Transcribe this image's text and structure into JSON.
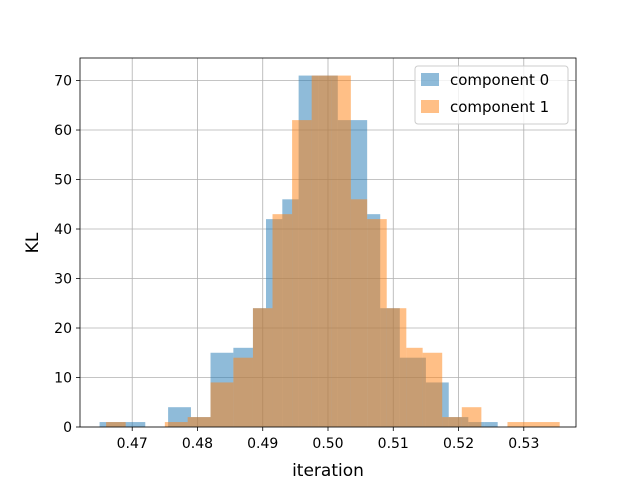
{
  "chart_data": {
    "type": "bar",
    "title": "",
    "xlabel": "iteration",
    "ylabel": "KL",
    "xlim": [
      0.462,
      0.538
    ],
    "ylim": [
      0,
      74.55
    ],
    "xticks": [
      0.47,
      0.48,
      0.49,
      0.5,
      0.51,
      0.52,
      0.53
    ],
    "xtick_labels": [
      "0.47",
      "0.48",
      "0.49",
      "0.50",
      "0.51",
      "0.52",
      "0.53"
    ],
    "yticks": [
      0,
      10,
      20,
      30,
      40,
      50,
      60,
      70
    ],
    "ytick_labels": [
      "0",
      "10",
      "20",
      "30",
      "40",
      "50",
      "60",
      "70"
    ],
    "grid": true,
    "legend_position": "top-right",
    "series": [
      {
        "name": "component 0",
        "color": "#1f77b4",
        "alpha": 0.5,
        "bins": [
          {
            "x0": 0.465,
            "x1": 0.4685,
            "count": 1
          },
          {
            "x0": 0.4685,
            "x1": 0.472,
            "count": 1
          },
          {
            "x0": 0.472,
            "x1": 0.4755,
            "count": 0
          },
          {
            "x0": 0.4755,
            "x1": 0.479,
            "count": 4
          },
          {
            "x0": 0.479,
            "x1": 0.482,
            "count": 2
          },
          {
            "x0": 0.482,
            "x1": 0.4855,
            "count": 15
          },
          {
            "x0": 0.4855,
            "x1": 0.4885,
            "count": 16
          },
          {
            "x0": 0.4885,
            "x1": 0.4905,
            "count": 24
          },
          {
            "x0": 0.4905,
            "x1": 0.493,
            "count": 42
          },
          {
            "x0": 0.493,
            "x1": 0.4955,
            "count": 46
          },
          {
            "x0": 0.4955,
            "x1": 0.4985,
            "count": 71
          },
          {
            "x0": 0.4985,
            "x1": 0.5015,
            "count": 71
          },
          {
            "x0": 0.5015,
            "x1": 0.506,
            "count": 62
          },
          {
            "x0": 0.506,
            "x1": 0.508,
            "count": 43
          },
          {
            "x0": 0.508,
            "x1": 0.511,
            "count": 24
          },
          {
            "x0": 0.511,
            "x1": 0.515,
            "count": 14
          },
          {
            "x0": 0.515,
            "x1": 0.5185,
            "count": 9
          },
          {
            "x0": 0.5185,
            "x1": 0.5215,
            "count": 2
          },
          {
            "x0": 0.5215,
            "x1": 0.524,
            "count": 1
          },
          {
            "x0": 0.524,
            "x1": 0.526,
            "count": 1
          }
        ]
      },
      {
        "name": "component 1",
        "color": "#ff7f0e",
        "alpha": 0.5,
        "bins": [
          {
            "x0": 0.466,
            "x1": 0.469,
            "count": 1
          },
          {
            "x0": 0.475,
            "x1": 0.4785,
            "count": 1
          },
          {
            "x0": 0.4785,
            "x1": 0.482,
            "count": 2
          },
          {
            "x0": 0.482,
            "x1": 0.4855,
            "count": 9
          },
          {
            "x0": 0.4855,
            "x1": 0.4885,
            "count": 14
          },
          {
            "x0": 0.4885,
            "x1": 0.4915,
            "count": 24
          },
          {
            "x0": 0.4915,
            "x1": 0.4945,
            "count": 43
          },
          {
            "x0": 0.4945,
            "x1": 0.4975,
            "count": 62
          },
          {
            "x0": 0.4975,
            "x1": 0.5005,
            "count": 71
          },
          {
            "x0": 0.5005,
            "x1": 0.5035,
            "count": 71
          },
          {
            "x0": 0.5035,
            "x1": 0.506,
            "count": 46
          },
          {
            "x0": 0.506,
            "x1": 0.509,
            "count": 42
          },
          {
            "x0": 0.509,
            "x1": 0.512,
            "count": 24
          },
          {
            "x0": 0.512,
            "x1": 0.5145,
            "count": 16
          },
          {
            "x0": 0.5145,
            "x1": 0.5175,
            "count": 15
          },
          {
            "x0": 0.5175,
            "x1": 0.5205,
            "count": 2
          },
          {
            "x0": 0.5205,
            "x1": 0.5235,
            "count": 4
          },
          {
            "x0": 0.5275,
            "x1": 0.5355,
            "count": 1
          }
        ]
      }
    ]
  }
}
